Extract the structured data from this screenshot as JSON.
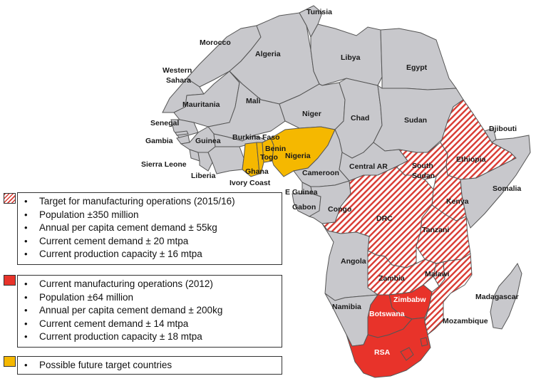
{
  "colors": {
    "base_country": "#c8c8cc",
    "border": "#555555",
    "target_hatch": "#d93a32",
    "current_red": "#e8332a",
    "future_orange": "#f5b800",
    "ocean": "#ffffff"
  },
  "countries": {
    "tunisia": "Tunisia",
    "morocco": "Morocco",
    "algeria": "Algeria",
    "libya": "Libya",
    "egypt": "Egypt",
    "western_sahara_1": "Western",
    "western_sahara_2": "Sahara",
    "mauritania": "Mauritania",
    "mali": "Mali",
    "niger": "Niger",
    "chad": "Chad",
    "sudan": "Sudan",
    "senegal": "Senegal",
    "gambia": "Gambia",
    "guinea": "Guinea",
    "burkina_faso": "Burkina Faso",
    "benin": "Benin",
    "togo": "Togo",
    "nigeria": "Nigeria",
    "sierra_leone": "Sierra Leone",
    "liberia": "Liberia",
    "ghana": "Ghana",
    "ivory_coast": "Ivory Coast",
    "cameroon": "Cameroon",
    "central_ar": "Central AR",
    "south_sudan_1": "South",
    "south_sudan_2": "Sudan",
    "ethiopia": "Ethiopia",
    "djibouti": "Djibouti",
    "somalia": "Somalia",
    "e_guinea": "E Guinea",
    "gabon": "Gabon",
    "congo": "Congo",
    "drc": "DRC",
    "kenya": "Kenya",
    "tanzani": "Tanzani",
    "angola": "Angola",
    "zambia": "Zambia",
    "malawi": "Malawi",
    "madagascar": "Madagascar",
    "zimbabwe": "Zimbabw",
    "botswana": "Botswana",
    "namibia": "Namibia",
    "mozambique": "Mozambique",
    "rsa": "RSA"
  },
  "legend": {
    "target": {
      "items": [
        "Target for manufacturing operations (2015/16)",
        "Population ±350 million",
        "Annual per capita cement demand ± 55kg",
        "Current cement demand ± 20 mtpa",
        "Current production capacity ± 16 mtpa"
      ]
    },
    "current": {
      "items": [
        "Current manufacturing operations (2012)",
        "Population ±64 million",
        "Annual per capita cement demand ± 200kg",
        "Current cement demand ± 14 mtpa",
        "Current production capacity ± 18 mtpa"
      ]
    },
    "future": {
      "items": [
        "Possible future target countries"
      ]
    }
  }
}
